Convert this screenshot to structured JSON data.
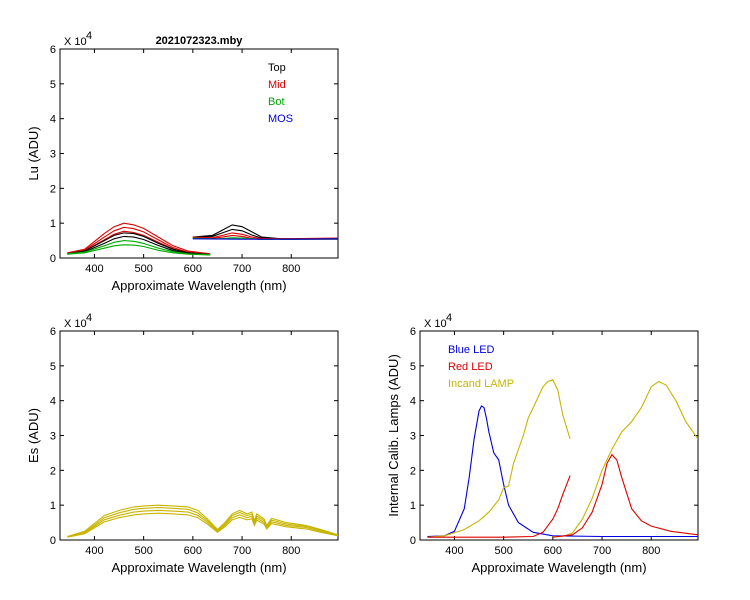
{
  "window_title": "2021072323.mby",
  "chart_data": [
    {
      "id": "lu",
      "type": "line",
      "title": "2021072323.mby",
      "xlabel": "Approximate Wavelength (nm)",
      "ylabel": "Lu (ADU)",
      "multiplier": "X 10",
      "multiplier_exp": "4",
      "xlim": [
        330,
        895
      ],
      "ylim": [
        0,
        6
      ],
      "xticks": [
        400,
        500,
        600,
        700,
        800
      ],
      "yticks": [
        0,
        1,
        2,
        3,
        4,
        5,
        6
      ],
      "legend_position": "top-right",
      "legend": [
        {
          "name": "Top",
          "color": "#000000"
        },
        {
          "name": "Mid",
          "color": "#dd0000"
        },
        {
          "name": "Bot",
          "color": "#00aa00"
        },
        {
          "name": "MOS",
          "color": "#0000dd"
        }
      ],
      "series": [
        {
          "name": "Mid",
          "color": "#dd0000",
          "x": [
            345,
            380,
            420,
            440,
            460,
            480,
            500,
            530,
            560,
            590,
            635
          ],
          "y": [
            0.15,
            0.25,
            0.7,
            0.9,
            1.0,
            0.95,
            0.85,
            0.6,
            0.35,
            0.2,
            0.12
          ]
        },
        {
          "name": "Mid",
          "color": "#dd0000",
          "x": [
            345,
            380,
            420,
            440,
            460,
            480,
            500,
            530,
            560,
            590,
            635
          ],
          "y": [
            0.14,
            0.22,
            0.6,
            0.78,
            0.88,
            0.84,
            0.75,
            0.52,
            0.3,
            0.17,
            0.11
          ]
        },
        {
          "name": "Mid",
          "color": "#dd0000",
          "x": [
            345,
            380,
            420,
            440,
            460,
            480,
            500,
            530,
            560,
            590,
            635
          ],
          "y": [
            0.13,
            0.2,
            0.52,
            0.68,
            0.77,
            0.73,
            0.65,
            0.45,
            0.26,
            0.15,
            0.1
          ]
        },
        {
          "name": "Top",
          "color": "#000000",
          "x": [
            345,
            380,
            420,
            440,
            460,
            480,
            500,
            530,
            560,
            590,
            635
          ],
          "y": [
            0.12,
            0.2,
            0.5,
            0.65,
            0.72,
            0.7,
            0.62,
            0.42,
            0.25,
            0.15,
            0.1
          ]
        },
        {
          "name": "Top",
          "color": "#000000",
          "x": [
            345,
            380,
            420,
            440,
            460,
            480,
            500,
            530,
            560,
            590,
            635
          ],
          "y": [
            0.11,
            0.18,
            0.42,
            0.55,
            0.62,
            0.6,
            0.53,
            0.36,
            0.21,
            0.13,
            0.09
          ]
        },
        {
          "name": "Bot",
          "color": "#00aa00",
          "x": [
            345,
            380,
            420,
            440,
            460,
            480,
            500,
            530,
            560,
            590,
            635
          ],
          "y": [
            0.12,
            0.17,
            0.35,
            0.45,
            0.5,
            0.48,
            0.42,
            0.28,
            0.18,
            0.12,
            0.1
          ]
        },
        {
          "name": "Bot",
          "color": "#00aa00",
          "x": [
            345,
            380,
            420,
            440,
            460,
            480,
            500,
            530,
            560,
            590,
            635
          ],
          "y": [
            0.11,
            0.15,
            0.28,
            0.35,
            0.38,
            0.37,
            0.33,
            0.22,
            0.15,
            0.11,
            0.09
          ]
        },
        {
          "name": "Top",
          "color": "#000000",
          "x": [
            600,
            640,
            660,
            680,
            700,
            720,
            740,
            780,
            820,
            895
          ],
          "y": [
            0.6,
            0.65,
            0.8,
            0.95,
            0.9,
            0.75,
            0.6,
            0.55,
            0.55,
            0.55
          ]
        },
        {
          "name": "Top",
          "color": "#000000",
          "x": [
            600,
            640,
            660,
            680,
            700,
            720,
            740,
            780,
            820,
            895
          ],
          "y": [
            0.58,
            0.62,
            0.72,
            0.82,
            0.78,
            0.66,
            0.57,
            0.54,
            0.54,
            0.54
          ]
        },
        {
          "name": "Mid",
          "color": "#dd0000",
          "x": [
            600,
            640,
            660,
            680,
            700,
            720,
            740,
            780,
            820,
            895
          ],
          "y": [
            0.6,
            0.58,
            0.65,
            0.72,
            0.68,
            0.6,
            0.56,
            0.56,
            0.56,
            0.57
          ]
        },
        {
          "name": "Mid",
          "color": "#dd0000",
          "x": [
            600,
            640,
            660,
            680,
            700,
            720,
            740,
            780,
            820,
            895
          ],
          "y": [
            0.58,
            0.56,
            0.6,
            0.65,
            0.62,
            0.56,
            0.54,
            0.55,
            0.55,
            0.56
          ]
        },
        {
          "name": "Bot",
          "color": "#00aa00",
          "x": [
            600,
            640,
            660,
            680,
            700,
            720,
            740,
            780,
            820,
            895
          ],
          "y": [
            0.57,
            0.55,
            0.56,
            0.58,
            0.57,
            0.55,
            0.53,
            0.54,
            0.54,
            0.55
          ]
        },
        {
          "name": "MOS",
          "color": "#0000dd",
          "x": [
            600,
            700,
            800,
            895
          ],
          "y": [
            0.55,
            0.54,
            0.54,
            0.55
          ]
        }
      ]
    },
    {
      "id": "es",
      "type": "line",
      "title": "",
      "xlabel": "Approximate Wavelength (nm)",
      "ylabel": "Es  (ADU)",
      "multiplier": "X 10",
      "multiplier_exp": "4",
      "xlim": [
        330,
        895
      ],
      "ylim": [
        0,
        6
      ],
      "xticks": [
        400,
        500,
        600,
        700,
        800
      ],
      "yticks": [
        0,
        1,
        2,
        3,
        4,
        5,
        6
      ],
      "legend": [],
      "series": [
        {
          "name": "Es",
          "color": "#c8b400",
          "x": [
            345,
            380,
            420,
            450,
            480,
            500,
            530,
            560,
            590,
            610,
            630,
            650,
            665,
            680,
            695,
            710,
            720,
            725,
            730,
            745,
            750,
            760,
            790,
            830,
            860,
            895
          ],
          "y": [
            0.1,
            0.25,
            0.7,
            0.85,
            0.95,
            0.98,
            1.0,
            0.98,
            0.95,
            0.85,
            0.6,
            0.3,
            0.5,
            0.75,
            0.85,
            0.75,
            0.8,
            0.55,
            0.75,
            0.6,
            0.42,
            0.62,
            0.5,
            0.42,
            0.3,
            0.15
          ]
        },
        {
          "name": "Es",
          "color": "#c8b400",
          "x": [
            345,
            380,
            420,
            450,
            480,
            500,
            530,
            560,
            590,
            610,
            630,
            650,
            665,
            680,
            695,
            710,
            720,
            725,
            730,
            745,
            750,
            760,
            790,
            830,
            860,
            895
          ],
          "y": [
            0.09,
            0.22,
            0.64,
            0.78,
            0.88,
            0.91,
            0.93,
            0.91,
            0.88,
            0.78,
            0.55,
            0.28,
            0.46,
            0.7,
            0.79,
            0.7,
            0.74,
            0.5,
            0.69,
            0.55,
            0.39,
            0.57,
            0.46,
            0.39,
            0.28,
            0.14
          ]
        },
        {
          "name": "Es",
          "color": "#c8b400",
          "x": [
            345,
            380,
            420,
            450,
            480,
            500,
            530,
            560,
            590,
            610,
            630,
            650,
            665,
            680,
            695,
            710,
            720,
            725,
            730,
            745,
            750,
            760,
            790,
            830,
            860,
            895
          ],
          "y": [
            0.09,
            0.2,
            0.58,
            0.71,
            0.8,
            0.83,
            0.85,
            0.83,
            0.8,
            0.71,
            0.5,
            0.25,
            0.42,
            0.64,
            0.72,
            0.64,
            0.68,
            0.46,
            0.63,
            0.5,
            0.36,
            0.52,
            0.42,
            0.36,
            0.25,
            0.13
          ]
        },
        {
          "name": "Es",
          "color": "#c8b400",
          "x": [
            345,
            380,
            420,
            450,
            480,
            500,
            530,
            560,
            590,
            610,
            630,
            650,
            665,
            680,
            695,
            710,
            720,
            725,
            730,
            745,
            750,
            760,
            790,
            830,
            860,
            895
          ],
          "y": [
            0.08,
            0.18,
            0.52,
            0.64,
            0.72,
            0.75,
            0.77,
            0.75,
            0.72,
            0.64,
            0.45,
            0.22,
            0.38,
            0.58,
            0.65,
            0.58,
            0.61,
            0.42,
            0.57,
            0.45,
            0.32,
            0.47,
            0.38,
            0.32,
            0.22,
            0.12
          ]
        }
      ]
    },
    {
      "id": "lamps",
      "type": "line",
      "title": "",
      "xlabel": "Approximate Wavelength (nm)",
      "ylabel": "Internal Calib. Lamps  (ADU)",
      "multiplier": "X 10",
      "multiplier_exp": "4",
      "xlim": [
        330,
        895
      ],
      "ylim": [
        0,
        6
      ],
      "xticks": [
        400,
        500,
        600,
        700,
        800
      ],
      "yticks": [
        0,
        1,
        2,
        3,
        4,
        5,
        6
      ],
      "legend_position": "top-left",
      "legend": [
        {
          "name": "Blue LED",
          "color": "#0000dd"
        },
        {
          "name": "Red LED",
          "color": "#dd0000"
        },
        {
          "name": "Incand LAMP",
          "color": "#c8b400"
        }
      ],
      "series": [
        {
          "name": "Blue LED",
          "color": "#0000dd",
          "x": [
            345,
            380,
            400,
            420,
            430,
            440,
            450,
            455,
            460,
            465,
            470,
            480,
            490,
            500,
            510,
            530,
            560,
            600,
            700,
            800,
            895
          ],
          "y": [
            0.1,
            0.12,
            0.25,
            0.9,
            1.8,
            2.9,
            3.7,
            3.85,
            3.8,
            3.5,
            3.1,
            2.5,
            2.3,
            1.6,
            1.0,
            0.5,
            0.22,
            0.12,
            0.1,
            0.1,
            0.1
          ]
        },
        {
          "name": "Incand LAMP",
          "color": "#c8b400",
          "x": [
            345,
            380,
            420,
            450,
            470,
            490,
            500,
            510,
            520,
            530,
            540,
            550,
            560,
            570,
            580,
            590,
            600,
            610,
            620,
            635
          ],
          "y": [
            0.08,
            0.12,
            0.3,
            0.55,
            0.8,
            1.15,
            1.5,
            1.55,
            2.2,
            2.6,
            3.0,
            3.5,
            3.8,
            4.1,
            4.4,
            4.55,
            4.6,
            4.3,
            3.6,
            2.9
          ]
        },
        {
          "name": "Red LED",
          "color": "#dd0000",
          "x": [
            345,
            500,
            560,
            580,
            600,
            610,
            620,
            635
          ],
          "y": [
            0.08,
            0.08,
            0.1,
            0.22,
            0.6,
            0.9,
            1.3,
            1.85
          ]
        },
        {
          "name": "Incand LAMP",
          "color": "#c8b400",
          "x": [
            600,
            620,
            640,
            660,
            680,
            700,
            720,
            740,
            760,
            780,
            800,
            815,
            830,
            850,
            870,
            895
          ],
          "y": [
            0.1,
            0.1,
            0.2,
            0.6,
            1.2,
            2.0,
            2.6,
            3.1,
            3.4,
            3.8,
            4.4,
            4.55,
            4.45,
            4.0,
            3.4,
            2.9
          ]
        },
        {
          "name": "Red LED",
          "color": "#dd0000",
          "x": [
            600,
            640,
            660,
            680,
            700,
            710,
            720,
            730,
            740,
            760,
            780,
            800,
            840,
            895
          ],
          "y": [
            0.08,
            0.15,
            0.35,
            0.8,
            1.6,
            2.2,
            2.45,
            2.3,
            1.8,
            0.9,
            0.55,
            0.4,
            0.25,
            0.15
          ]
        }
      ]
    }
  ]
}
